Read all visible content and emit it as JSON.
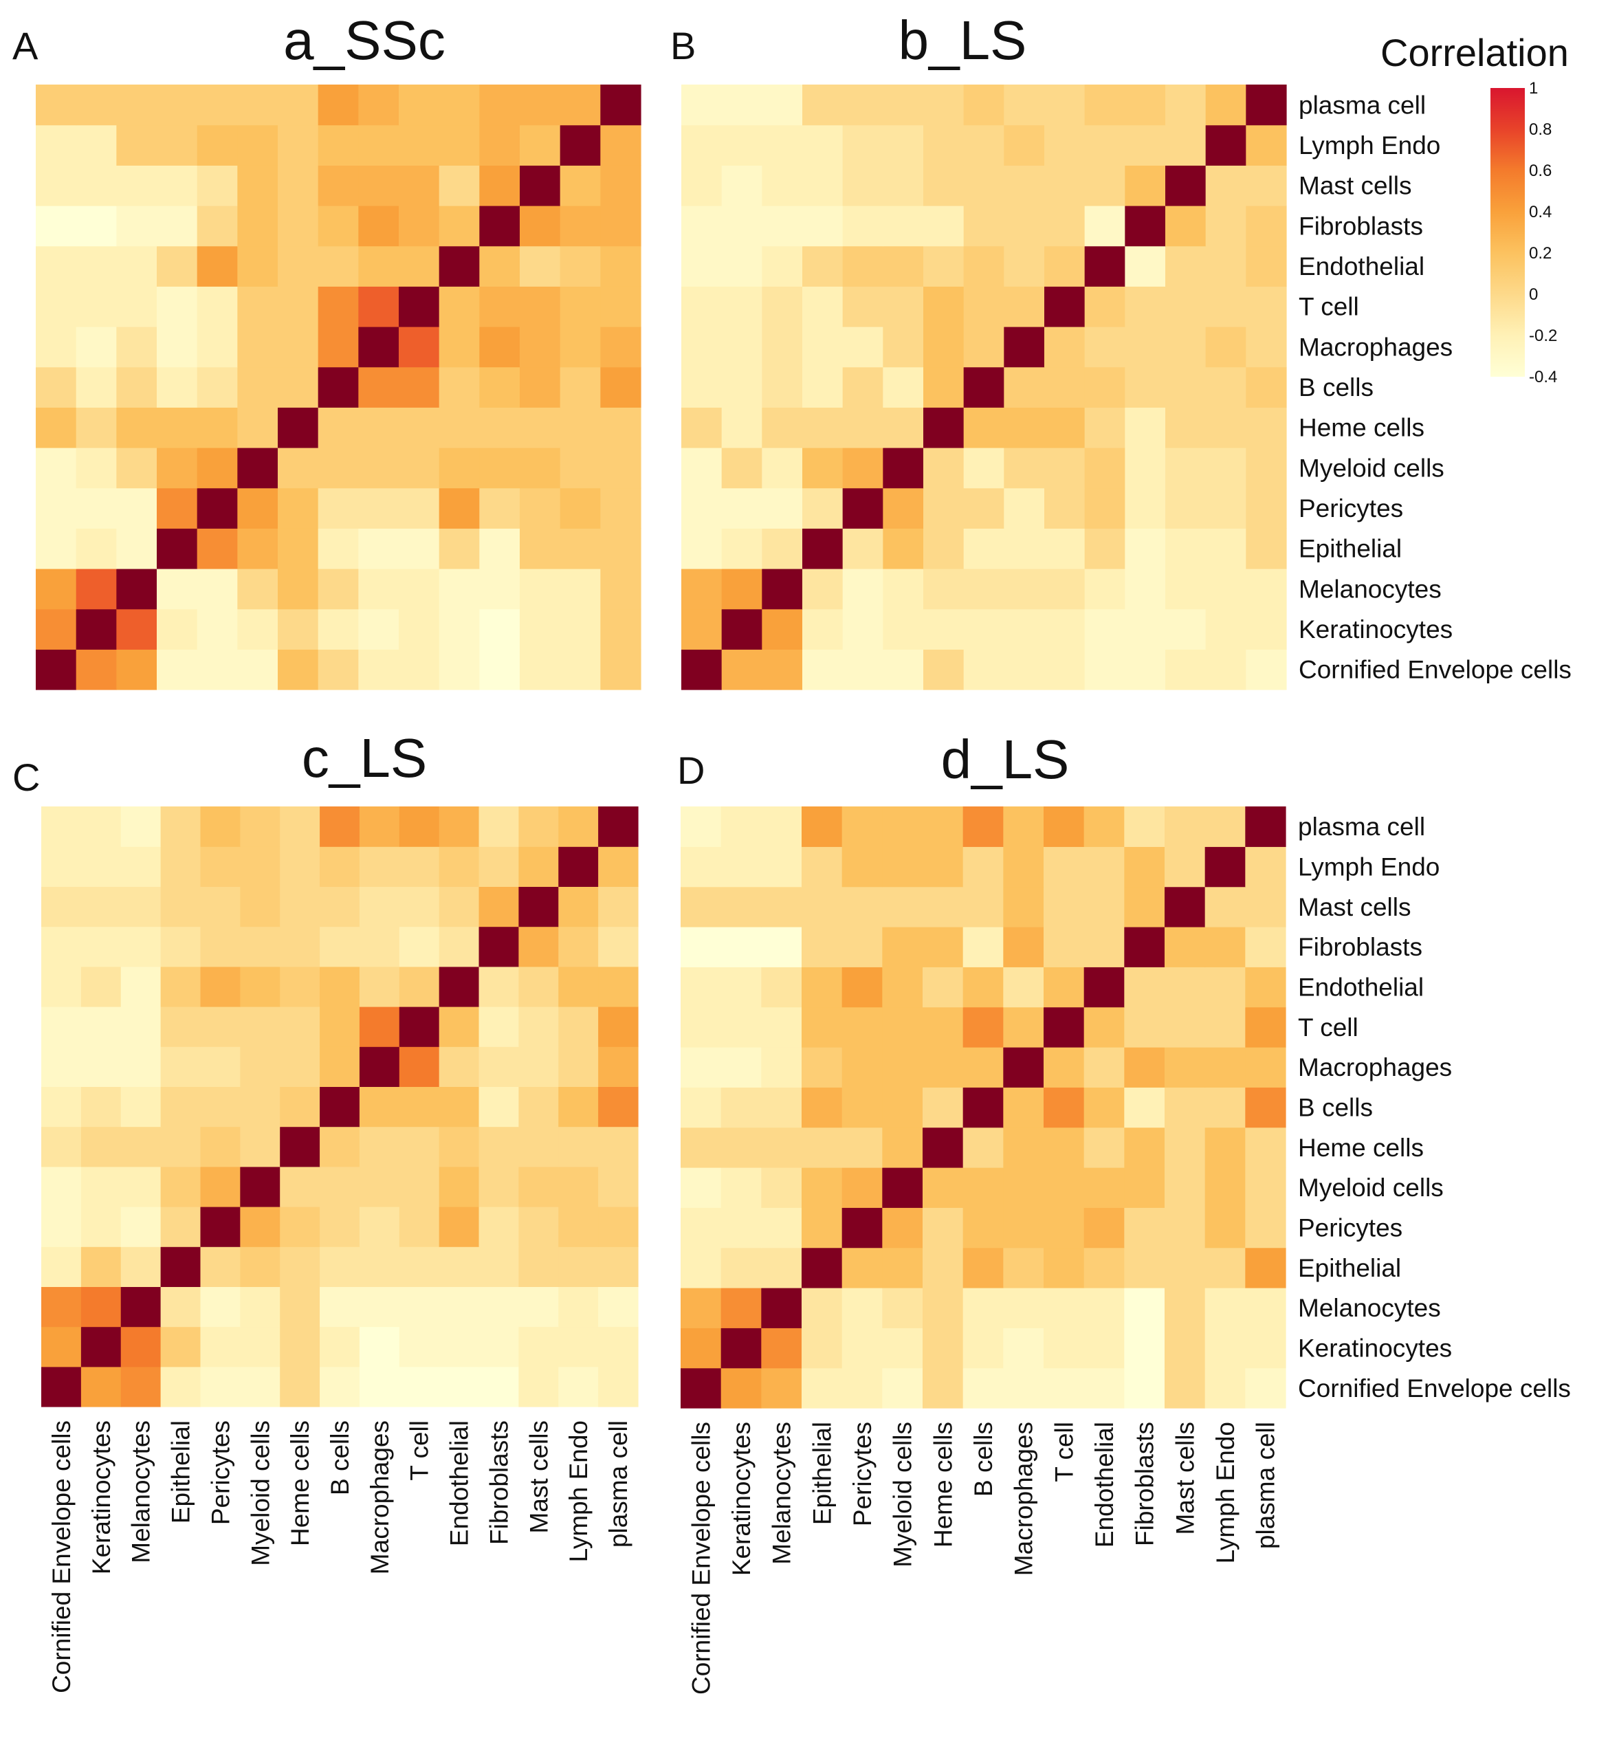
{
  "chart_data": [
    {
      "type": "heatmap",
      "panel_letter": "A",
      "title": "a_SSc",
      "categories": [
        "Cornified Envelope cells",
        "Keratinocytes",
        "Melanocytes",
        "Epithelial",
        "Pericytes",
        "Myeloid cells",
        "Heme cells",
        "B cells",
        "Macrophages",
        "T cell",
        "Endothelial",
        "Fibroblasts",
        "Mast cells",
        "Lymph Endo",
        "plasma cell"
      ],
      "matrix": [
        [
          1.0,
          0.5,
          0.4,
          -0.3,
          -0.3,
          -0.3,
          0.2,
          0.0,
          -0.2,
          -0.2,
          -0.3,
          -0.4,
          -0.2,
          -0.2,
          0.1
        ],
        [
          0.5,
          1.0,
          0.7,
          -0.2,
          -0.3,
          -0.2,
          0.0,
          -0.2,
          -0.3,
          -0.2,
          -0.3,
          -0.4,
          -0.2,
          -0.2,
          0.1
        ],
        [
          0.4,
          0.7,
          1.0,
          -0.3,
          -0.3,
          0.0,
          0.2,
          0.0,
          -0.2,
          -0.2,
          -0.3,
          -0.3,
          -0.2,
          -0.2,
          0.1
        ],
        [
          -0.3,
          -0.2,
          -0.3,
          1.0,
          0.5,
          0.3,
          0.2,
          -0.2,
          -0.3,
          -0.3,
          0.0,
          -0.3,
          0.1,
          0.1,
          0.1
        ],
        [
          -0.3,
          -0.3,
          -0.3,
          0.5,
          1.0,
          0.4,
          0.2,
          -0.1,
          -0.1,
          -0.1,
          0.4,
          0.0,
          0.1,
          0.2,
          0.1
        ],
        [
          -0.3,
          -0.2,
          0.0,
          0.3,
          0.4,
          1.0,
          0.1,
          0.1,
          0.1,
          0.1,
          0.2,
          0.2,
          0.2,
          0.1,
          0.1
        ],
        [
          0.2,
          0.0,
          0.2,
          0.2,
          0.2,
          0.1,
          1.0,
          0.1,
          0.1,
          0.1,
          0.1,
          0.1,
          0.1,
          0.1,
          0.1
        ],
        [
          0.0,
          -0.2,
          0.0,
          -0.2,
          -0.1,
          0.1,
          0.1,
          1.0,
          0.5,
          0.5,
          0.1,
          0.2,
          0.3,
          0.1,
          0.4
        ],
        [
          -0.2,
          -0.3,
          -0.1,
          -0.3,
          -0.2,
          0.1,
          0.1,
          0.5,
          1.0,
          0.7,
          0.2,
          0.4,
          0.3,
          0.2,
          0.3
        ],
        [
          -0.2,
          -0.2,
          -0.2,
          -0.3,
          -0.2,
          0.1,
          0.1,
          0.5,
          0.7,
          1.0,
          0.2,
          0.3,
          0.3,
          0.2,
          0.2
        ],
        [
          -0.2,
          -0.2,
          -0.2,
          0.0,
          0.4,
          0.2,
          0.1,
          0.1,
          0.2,
          0.2,
          1.0,
          0.2,
          0.0,
          0.1,
          0.2
        ],
        [
          -0.4,
          -0.4,
          -0.3,
          -0.3,
          0.0,
          0.2,
          0.1,
          0.2,
          0.4,
          0.3,
          0.2,
          1.0,
          0.4,
          0.3,
          0.3
        ],
        [
          -0.2,
          -0.2,
          -0.2,
          -0.2,
          -0.1,
          0.2,
          0.1,
          0.3,
          0.3,
          0.3,
          0.0,
          0.4,
          1.0,
          0.2,
          0.3
        ],
        [
          -0.2,
          -0.2,
          0.1,
          0.1,
          0.2,
          0.2,
          0.1,
          0.2,
          0.2,
          0.2,
          0.2,
          0.3,
          0.2,
          1.0,
          0.3
        ],
        [
          0.1,
          0.1,
          0.1,
          0.1,
          0.1,
          0.1,
          0.1,
          0.4,
          0.3,
          0.2,
          0.2,
          0.3,
          0.3,
          0.3,
          1.0
        ]
      ],
      "value_range": [
        -0.4,
        1
      ]
    },
    {
      "type": "heatmap",
      "panel_letter": "B",
      "title": "b_LS",
      "categories": [
        "Cornified Envelope cells",
        "Keratinocytes",
        "Melanocytes",
        "Epithelial",
        "Pericytes",
        "Myeloid cells",
        "Heme cells",
        "B cells",
        "Macrophages",
        "T cell",
        "Endothelial",
        "Fibroblasts",
        "Mast cells",
        "Lymph Endo",
        "plasma cell"
      ],
      "matrix": [
        [
          1.0,
          0.3,
          0.3,
          -0.3,
          -0.3,
          -0.3,
          0.0,
          -0.2,
          -0.2,
          -0.2,
          -0.3,
          -0.3,
          -0.2,
          -0.2,
          -0.3
        ],
        [
          0.3,
          1.0,
          0.4,
          -0.2,
          -0.3,
          -0.2,
          -0.2,
          -0.2,
          -0.2,
          -0.2,
          -0.3,
          -0.3,
          -0.3,
          -0.2,
          -0.2
        ],
        [
          0.3,
          0.4,
          1.0,
          -0.1,
          -0.3,
          -0.2,
          -0.1,
          -0.1,
          -0.1,
          -0.1,
          -0.2,
          -0.3,
          -0.2,
          -0.2,
          -0.2
        ],
        [
          -0.3,
          -0.2,
          -0.1,
          1.0,
          -0.1,
          0.2,
          0.0,
          -0.2,
          -0.2,
          -0.2,
          0.0,
          -0.3,
          -0.2,
          -0.2,
          0.0
        ],
        [
          -0.3,
          -0.3,
          -0.3,
          -0.1,
          1.0,
          0.3,
          0.0,
          0.0,
          -0.2,
          0.0,
          0.1,
          -0.2,
          -0.1,
          -0.1,
          0.0
        ],
        [
          -0.3,
          0.0,
          -0.2,
          0.2,
          0.3,
          1.0,
          0.0,
          -0.2,
          0.0,
          0.0,
          0.1,
          -0.2,
          -0.1,
          -0.1,
          0.0
        ],
        [
          0.0,
          -0.2,
          0.0,
          0.0,
          0.0,
          0.0,
          1.0,
          0.2,
          0.2,
          0.2,
          0.0,
          -0.2,
          0.0,
          0.0,
          0.0
        ],
        [
          -0.2,
          -0.2,
          -0.1,
          -0.2,
          0.0,
          -0.2,
          0.2,
          1.0,
          0.1,
          0.1,
          0.1,
          0.0,
          0.0,
          0.0,
          0.1
        ],
        [
          -0.2,
          -0.2,
          -0.1,
          -0.2,
          -0.2,
          0.0,
          0.2,
          0.1,
          1.0,
          0.1,
          0.0,
          0.0,
          0.0,
          0.1,
          0.0
        ],
        [
          -0.2,
          -0.2,
          -0.1,
          -0.2,
          0.0,
          0.0,
          0.2,
          0.1,
          0.1,
          1.0,
          0.1,
          0.0,
          0.0,
          0.0,
          0.0
        ],
        [
          -0.3,
          -0.3,
          -0.2,
          0.0,
          0.1,
          0.1,
          0.0,
          0.1,
          0.0,
          0.1,
          1.0,
          -0.3,
          0.0,
          0.0,
          0.1
        ],
        [
          -0.3,
          -0.3,
          -0.3,
          -0.3,
          -0.2,
          -0.2,
          -0.2,
          0.0,
          0.0,
          0.0,
          -0.3,
          1.0,
          0.2,
          0.0,
          0.1
        ],
        [
          -0.2,
          -0.3,
          -0.2,
          -0.2,
          -0.1,
          -0.1,
          0.0,
          0.0,
          0.0,
          0.0,
          0.0,
          0.2,
          1.0,
          0.0,
          0.0
        ],
        [
          -0.2,
          -0.2,
          -0.2,
          -0.2,
          -0.1,
          -0.1,
          0.0,
          0.0,
          0.1,
          0.0,
          0.0,
          0.0,
          0.0,
          1.0,
          0.2
        ],
        [
          -0.3,
          -0.3,
          -0.3,
          0.0,
          0.0,
          0.0,
          0.0,
          0.1,
          0.0,
          0.0,
          0.1,
          0.1,
          0.0,
          0.2,
          1.0
        ]
      ],
      "value_range": [
        -0.4,
        1
      ]
    },
    {
      "type": "heatmap",
      "panel_letter": "C",
      "title": "c_LS",
      "categories": [
        "Cornified Envelope cells",
        "Keratinocytes",
        "Melanocytes",
        "Epithelial",
        "Pericytes",
        "Myeloid cells",
        "Heme cells",
        "B cells",
        "Macrophages",
        "T cell",
        "Endothelial",
        "Fibroblasts",
        "Mast cells",
        "Lymph Endo",
        "plasma cell"
      ],
      "matrix": [
        [
          1.0,
          0.4,
          0.5,
          -0.2,
          -0.3,
          -0.3,
          0.0,
          -0.3,
          -0.4,
          -0.4,
          -0.4,
          -0.4,
          -0.2,
          -0.3,
          -0.2
        ],
        [
          0.4,
          1.0,
          0.6,
          0.1,
          -0.2,
          -0.2,
          0.0,
          -0.2,
          -0.4,
          -0.3,
          -0.3,
          -0.3,
          -0.2,
          -0.2,
          -0.2
        ],
        [
          0.5,
          0.6,
          1.0,
          -0.1,
          -0.3,
          -0.2,
          0.0,
          -0.3,
          -0.3,
          -0.3,
          -0.3,
          -0.3,
          -0.3,
          -0.2,
          -0.3
        ],
        [
          -0.2,
          0.1,
          -0.1,
          1.0,
          0.0,
          0.1,
          0.0,
          -0.1,
          -0.1,
          -0.1,
          -0.1,
          -0.1,
          0.0,
          0.0,
          0.0
        ],
        [
          -0.3,
          -0.2,
          -0.3,
          0.0,
          1.0,
          0.3,
          0.1,
          0.0,
          -0.1,
          0.0,
          0.3,
          -0.1,
          0.0,
          0.1,
          0.1
        ],
        [
          -0.3,
          -0.2,
          -0.2,
          0.1,
          0.3,
          1.0,
          0.0,
          0.0,
          0.0,
          0.0,
          0.2,
          0.0,
          0.1,
          0.1,
          0.0
        ],
        [
          -0.1,
          0.0,
          0.0,
          0.0,
          0.1,
          0.0,
          1.0,
          0.1,
          0.0,
          0.0,
          0.1,
          0.0,
          0.0,
          0.0,
          0.0
        ],
        [
          -0.2,
          -0.1,
          -0.2,
          0.0,
          0.0,
          0.0,
          0.1,
          1.0,
          0.2,
          0.2,
          0.2,
          -0.2,
          0.0,
          0.2,
          0.5
        ],
        [
          -0.3,
          -0.3,
          -0.3,
          -0.1,
          -0.1,
          0.0,
          0.0,
          0.2,
          1.0,
          0.6,
          0.0,
          -0.1,
          -0.1,
          0.0,
          0.3
        ],
        [
          -0.3,
          -0.3,
          -0.3,
          0.0,
          0.0,
          0.0,
          0.0,
          0.2,
          0.6,
          1.0,
          0.2,
          -0.2,
          -0.1,
          0.0,
          0.4
        ],
        [
          -0.2,
          -0.1,
          -0.3,
          0.1,
          0.3,
          0.2,
          0.1,
          0.2,
          0.0,
          0.1,
          1.0,
          -0.1,
          0.0,
          0.2,
          0.2
        ],
        [
          -0.2,
          -0.2,
          -0.2,
          -0.1,
          0.0,
          0.0,
          0.0,
          -0.1,
          -0.1,
          -0.2,
          -0.1,
          1.0,
          0.3,
          0.1,
          -0.1
        ],
        [
          -0.1,
          -0.1,
          -0.1,
          0.0,
          0.0,
          0.1,
          0.0,
          0.0,
          -0.1,
          -0.1,
          0.0,
          0.3,
          1.0,
          0.2,
          0.0
        ],
        [
          -0.2,
          -0.2,
          -0.2,
          0.0,
          0.1,
          0.1,
          0.0,
          0.1,
          0.0,
          0.0,
          0.1,
          0.0,
          0.2,
          1.0,
          0.2
        ],
        [
          -0.2,
          -0.2,
          -0.3,
          0.0,
          0.2,
          0.1,
          0.0,
          0.5,
          0.3,
          0.4,
          0.3,
          -0.1,
          0.1,
          0.2,
          1.0
        ]
      ],
      "value_range": [
        -0.4,
        1
      ]
    },
    {
      "type": "heatmap",
      "panel_letter": "D",
      "title": "d_LS",
      "categories": [
        "Cornified Envelope cells",
        "Keratinocytes",
        "Melanocytes",
        "Epithelial",
        "Pericytes",
        "Myeloid cells",
        "Heme cells",
        "B cells",
        "Macrophages",
        "T cell",
        "Endothelial",
        "Fibroblasts",
        "Mast cells",
        "Lymph Endo",
        "plasma cell"
      ],
      "matrix": [
        [
          1.0,
          0.4,
          0.3,
          -0.2,
          -0.2,
          -0.3,
          0.0,
          -0.3,
          -0.3,
          -0.3,
          -0.3,
          -0.4,
          0.0,
          -0.2,
          -0.3
        ],
        [
          0.4,
          1.0,
          0.5,
          -0.1,
          -0.2,
          -0.2,
          0.0,
          -0.2,
          -0.3,
          -0.2,
          -0.2,
          -0.4,
          0.0,
          -0.2,
          -0.2
        ],
        [
          0.3,
          0.5,
          1.0,
          -0.1,
          -0.2,
          -0.1,
          0.0,
          -0.2,
          -0.2,
          -0.2,
          -0.2,
          -0.4,
          0.0,
          -0.2,
          -0.2
        ],
        [
          -0.2,
          -0.1,
          -0.1,
          1.0,
          0.2,
          0.2,
          0.0,
          0.3,
          0.1,
          0.2,
          0.1,
          0.0,
          0.0,
          0.0,
          0.4
        ],
        [
          -0.2,
          -0.2,
          -0.2,
          0.2,
          1.0,
          0.3,
          0.0,
          0.2,
          0.2,
          0.2,
          0.3,
          0.0,
          0.0,
          0.2,
          0.0
        ],
        [
          -0.3,
          -0.2,
          -0.1,
          0.2,
          0.3,
          1.0,
          0.2,
          0.2,
          0.2,
          0.2,
          0.2,
          0.2,
          0.0,
          0.2,
          0.0
        ],
        [
          0.0,
          0.0,
          0.0,
          0.0,
          0.0,
          0.2,
          1.0,
          0.0,
          0.2,
          0.2,
          0.0,
          0.2,
          0.0,
          0.2,
          0.0
        ],
        [
          -0.2,
          -0.1,
          -0.1,
          0.3,
          0.2,
          0.2,
          0.0,
          1.0,
          0.2,
          0.5,
          0.2,
          -0.2,
          0.0,
          0.0,
          0.5
        ],
        [
          -0.3,
          -0.3,
          -0.2,
          0.1,
          0.2,
          0.2,
          0.2,
          0.2,
          1.0,
          0.2,
          0.0,
          0.3,
          0.2,
          0.2,
          0.2
        ],
        [
          -0.2,
          -0.2,
          -0.2,
          0.2,
          0.2,
          0.2,
          0.2,
          0.5,
          0.2,
          1.0,
          0.2,
          0.0,
          0.0,
          0.0,
          0.4
        ],
        [
          -0.2,
          -0.2,
          -0.1,
          0.2,
          0.4,
          0.2,
          0.0,
          0.2,
          -0.1,
          0.2,
          1.0,
          0.0,
          0.0,
          0.0,
          0.2
        ],
        [
          -0.4,
          -0.4,
          -0.4,
          0.0,
          0.0,
          0.2,
          0.2,
          -0.2,
          0.3,
          0.0,
          0.0,
          1.0,
          0.2,
          0.2,
          -0.1
        ],
        [
          0.0,
          0.0,
          0.0,
          0.0,
          0.0,
          0.0,
          0.0,
          0.0,
          0.2,
          0.0,
          0.0,
          0.2,
          1.0,
          0.0,
          0.0
        ],
        [
          -0.2,
          -0.2,
          -0.2,
          0.0,
          0.2,
          0.2,
          0.2,
          0.0,
          0.2,
          0.0,
          0.0,
          0.2,
          0.0,
          1.0,
          0.0
        ],
        [
          -0.3,
          -0.2,
          -0.2,
          0.4,
          0.2,
          0.2,
          0.2,
          0.5,
          0.2,
          0.4,
          0.2,
          -0.1,
          0.0,
          0.0,
          1.0
        ]
      ],
      "value_range": [
        -0.4,
        1
      ]
    }
  ],
  "legend": {
    "title": "Correlation",
    "ticks": [
      {
        "value": 1,
        "label": "1"
      },
      {
        "value": 0.8,
        "label": "0.8"
      },
      {
        "value": 0.6,
        "label": "0.6"
      },
      {
        "value": 0.4,
        "label": "0.4"
      },
      {
        "value": 0.2,
        "label": "0.2"
      },
      {
        "value": 0,
        "label": "0"
      },
      {
        "value": -0.2,
        "label": "-0.2"
      },
      {
        "value": -0.4,
        "label": "-0.4"
      }
    ]
  },
  "colors": {
    "diagonal": "#800020",
    "gradient_stops": [
      {
        "value": -0.4,
        "color": "#ffffd6"
      },
      {
        "value": -0.2,
        "color": "#fff1b6"
      },
      {
        "value": 0.0,
        "color": "#fdd98a"
      },
      {
        "value": 0.2,
        "color": "#fcc25f"
      },
      {
        "value": 0.4,
        "color": "#f9a13b"
      },
      {
        "value": 0.6,
        "color": "#f47b2c"
      },
      {
        "value": 0.8,
        "color": "#e8432a"
      },
      {
        "value": 1.0,
        "color": "#d9162f"
      }
    ]
  }
}
